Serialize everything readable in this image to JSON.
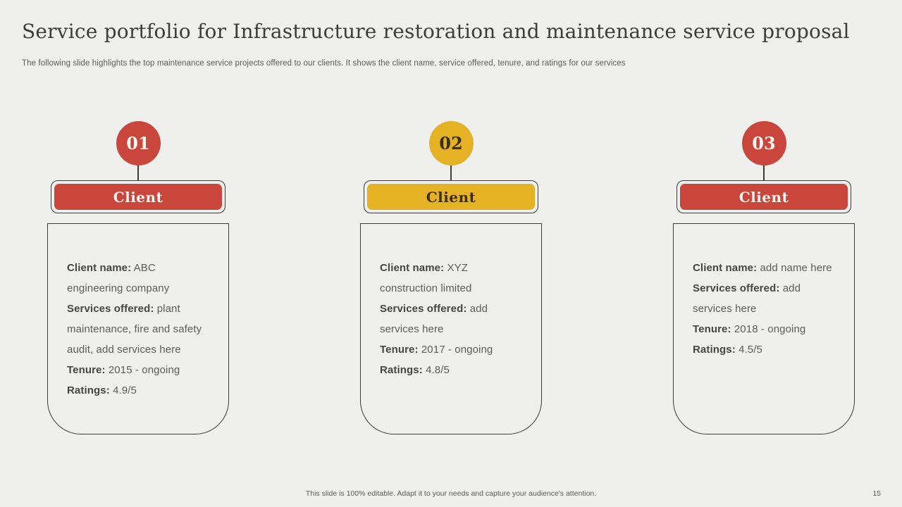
{
  "slide": {
    "title": "Service portfolio for Infrastructure restoration and maintenance service proposal",
    "subtitle": "The following slide highlights the top maintenance service projects offered to our clients. It shows the client name, service offered, tenure, and ratings for our services",
    "footer_note": "This slide is 100% editable.  Adapt it to your needs and capture your audience's attention.",
    "page_number": "15"
  },
  "colors": {
    "background": "#EFEFED",
    "accent-red": "#C8463C",
    "accent-yellow": "#E5B125",
    "dark-on-yellow": "#3D3007",
    "outline": "#3A3A3A",
    "text-title": "#3C3C3C",
    "text-muted": "#5A5A5A",
    "text-body": "#5C5C5E",
    "text-label": "#454545"
  },
  "columns": [
    {
      "number": "01",
      "accent": "red",
      "badge_label": "Client",
      "details": [
        {
          "label": "Client name:",
          "value": " ABC engineering company"
        },
        {
          "label": "Services offered:",
          "value": " plant maintenance, fire and safety audit, add services here"
        },
        {
          "label": "Tenure:",
          "value": " 2015 - ongoing"
        },
        {
          "label": "Ratings:",
          "value": " 4.9/5"
        }
      ]
    },
    {
      "number": "02",
      "accent": "yellow",
      "badge_label": "Client",
      "details": [
        {
          "label": "Client name:",
          "value": " XYZ construction limited"
        },
        {
          "label": "Services offered:",
          "value": " add services here"
        },
        {
          "label": "Tenure:",
          "value": " 2017 - ongoing"
        },
        {
          "label": "Ratings:",
          "value": " 4.8/5"
        }
      ]
    },
    {
      "number": "03",
      "accent": "red",
      "badge_label": "Client",
      "details": [
        {
          "label": "Client name:",
          "value": " add name here"
        },
        {
          "label": "Services offered:",
          "value": " add services here"
        },
        {
          "label": "Tenure:",
          "value": " 2018 - ongoing"
        },
        {
          "label": "Ratings:",
          "value": " 4.5/5"
        }
      ]
    }
  ]
}
